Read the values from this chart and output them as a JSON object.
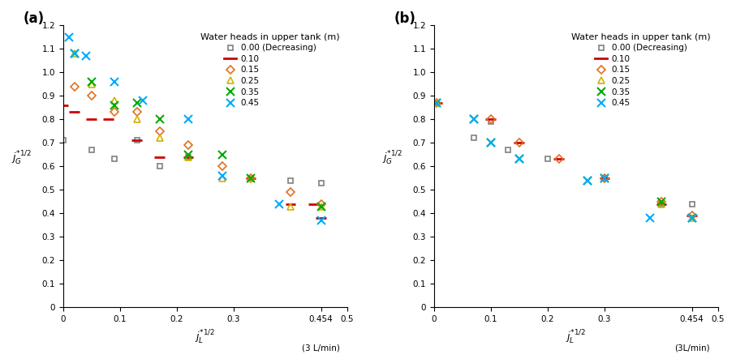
{
  "panel_a": {
    "series": {
      "0.00_dec": {
        "x": [
          0.0,
          0.05,
          0.09,
          0.13,
          0.17,
          0.22,
          0.33,
          0.4,
          0.454
        ],
        "y": [
          0.71,
          0.67,
          0.63,
          0.71,
          0.6,
          0.64,
          0.55,
          0.54,
          0.53
        ],
        "color": "#808080",
        "marker": "s",
        "markersize": 5,
        "label": "0.00 (Decreasing)"
      },
      "0.10": {
        "x": [
          0.0,
          0.02,
          0.05,
          0.08,
          0.13,
          0.17,
          0.22,
          0.33,
          0.4,
          0.44,
          0.454
        ],
        "y": [
          0.86,
          0.83,
          0.8,
          0.8,
          0.71,
          0.64,
          0.64,
          0.55,
          0.44,
          0.44,
          0.38
        ],
        "color": "#cc0000",
        "marker": "dash",
        "markersize": 8,
        "label": "0.10"
      },
      "0.15": {
        "x": [
          0.02,
          0.05,
          0.09,
          0.13,
          0.17,
          0.22,
          0.28,
          0.33,
          0.4,
          0.454
        ],
        "y": [
          0.94,
          0.9,
          0.83,
          0.83,
          0.75,
          0.69,
          0.6,
          0.55,
          0.49,
          0.44
        ],
        "color": "#e07020",
        "marker": "D",
        "markersize": 5,
        "label": "0.15"
      },
      "0.25": {
        "x": [
          0.02,
          0.05,
          0.09,
          0.13,
          0.17,
          0.22,
          0.28,
          0.33,
          0.4,
          0.454
        ],
        "y": [
          1.08,
          0.95,
          0.88,
          0.8,
          0.72,
          0.64,
          0.55,
          0.55,
          0.43,
          0.43
        ],
        "color": "#d4b000",
        "marker": "^",
        "markersize": 6,
        "label": "0.25"
      },
      "0.35": {
        "x": [
          0.02,
          0.05,
          0.09,
          0.13,
          0.17,
          0.22,
          0.28,
          0.33,
          0.454
        ],
        "y": [
          1.08,
          0.96,
          0.86,
          0.87,
          0.8,
          0.65,
          0.65,
          0.55,
          0.43
        ],
        "color": "#00aa00",
        "marker": "x",
        "markersize": 7,
        "label": "0.35"
      },
      "0.45": {
        "x": [
          0.01,
          0.02,
          0.04,
          0.09,
          0.14,
          0.22,
          0.28,
          0.38,
          0.454
        ],
        "y": [
          1.15,
          1.08,
          1.07,
          0.96,
          0.88,
          0.8,
          0.56,
          0.44,
          0.37
        ],
        "color": "#00aaff",
        "marker": "x",
        "markersize": 7,
        "label": "0.45"
      }
    },
    "xlim": [
      0,
      0.5
    ],
    "ylim": [
      0,
      1.2
    ],
    "xticks": [
      0,
      0.1,
      0.2,
      0.3,
      0.454,
      0.5
    ],
    "yticks": [
      0,
      0.1,
      0.2,
      0.3,
      0.4,
      0.5,
      0.6,
      0.7,
      0.8,
      0.9,
      1.0,
      1.1,
      1.2
    ],
    "xlabel": "$j_L^{*1/2}$",
    "ylabel": "$j_G^{*1/2}$",
    "xlabel2": "(3 L/min)",
    "label": "(a)"
  },
  "panel_b": {
    "series": {
      "0.00_dec": {
        "x": [
          0.005,
          0.07,
          0.1,
          0.13,
          0.2,
          0.3,
          0.4,
          0.454
        ],
        "y": [
          0.87,
          0.72,
          0.79,
          0.67,
          0.63,
          0.55,
          0.44,
          0.44
        ],
        "color": "#808080",
        "marker": "s",
        "markersize": 5,
        "label": "0.00 (Decreasing)"
      },
      "0.10": {
        "x": [
          0.005,
          0.1,
          0.15,
          0.22,
          0.3,
          0.4,
          0.454
        ],
        "y": [
          0.87,
          0.8,
          0.7,
          0.63,
          0.55,
          0.44,
          0.39
        ],
        "color": "#cc0000",
        "marker": "dash",
        "markersize": 8,
        "label": "0.10"
      },
      "0.15": {
        "x": [
          0.005,
          0.1,
          0.15,
          0.22,
          0.3,
          0.4,
          0.454
        ],
        "y": [
          0.87,
          0.8,
          0.7,
          0.63,
          0.55,
          0.45,
          0.39
        ],
        "color": "#e07020",
        "marker": "D",
        "markersize": 5,
        "label": "0.15"
      },
      "0.25": {
        "x": [
          0.005,
          0.4,
          0.454
        ],
        "y": [
          0.87,
          0.44,
          0.38
        ],
        "color": "#d4b000",
        "marker": "^",
        "markersize": 6,
        "label": "0.25"
      },
      "0.35": {
        "x": [
          0.005,
          0.07,
          0.1,
          0.15,
          0.27,
          0.3,
          0.4,
          0.454
        ],
        "y": [
          0.87,
          0.8,
          0.7,
          0.63,
          0.54,
          0.55,
          0.45,
          0.38
        ],
        "color": "#00aa00",
        "marker": "x",
        "markersize": 7,
        "label": "0.35"
      },
      "0.45": {
        "x": [
          0.005,
          0.07,
          0.1,
          0.15,
          0.27,
          0.3,
          0.38,
          0.454
        ],
        "y": [
          0.87,
          0.8,
          0.7,
          0.63,
          0.54,
          0.55,
          0.38,
          0.38
        ],
        "color": "#00aaff",
        "marker": "x",
        "markersize": 7,
        "label": "0.45"
      }
    },
    "xlim": [
      0,
      0.5
    ],
    "ylim": [
      0,
      1.2
    ],
    "xticks": [
      0,
      0.1,
      0.2,
      0.3,
      0.454,
      0.5
    ],
    "yticks": [
      0,
      0.1,
      0.2,
      0.3,
      0.4,
      0.5,
      0.6,
      0.7,
      0.8,
      0.9,
      1.0,
      1.1,
      1.2
    ],
    "xlabel": "$j_L^{*1/2}$",
    "ylabel": "$j_G^{*1/2}$",
    "xlabel2": "(3L/min)",
    "label": "(b)"
  },
  "legend_title": "Water heads in upper tank (m)",
  "background_color": "#ffffff",
  "series_order": [
    "0.00_dec",
    "0.10",
    "0.15",
    "0.25",
    "0.35",
    "0.45"
  ]
}
